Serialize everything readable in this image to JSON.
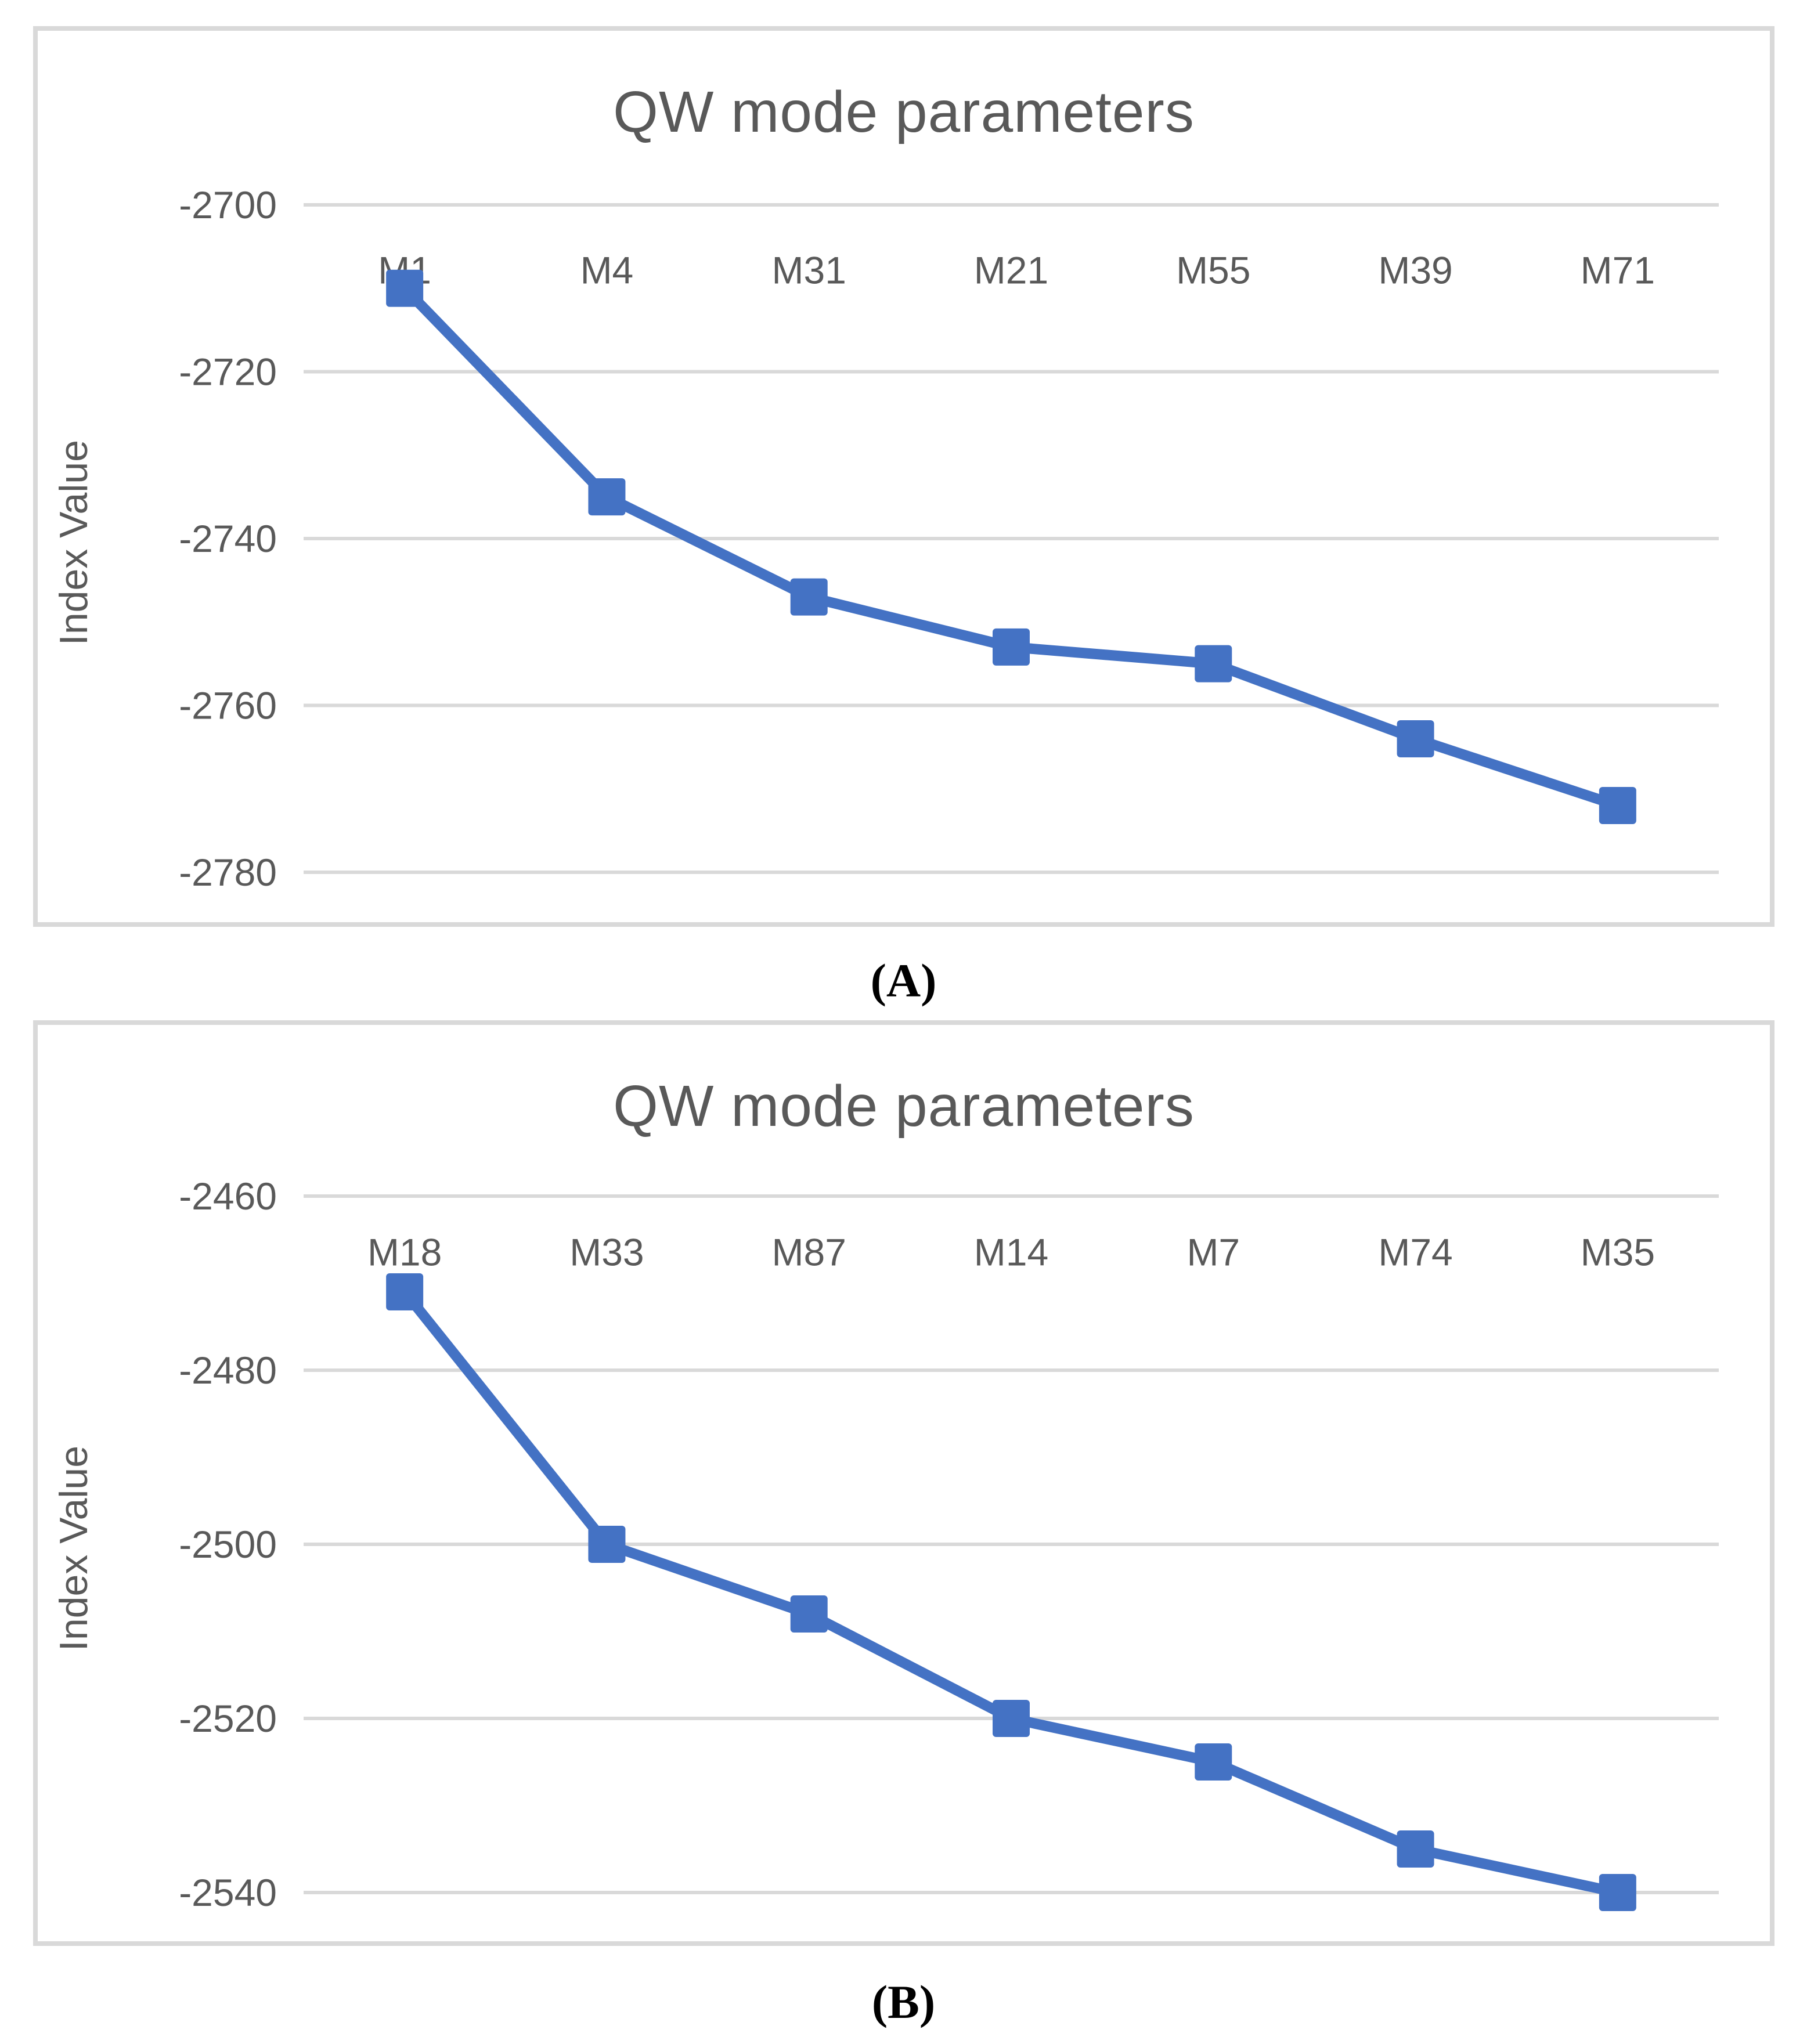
{
  "page": {
    "background": "#FFFFFF"
  },
  "chart_data": [
    {
      "type": "line",
      "title": "QW mode parameters",
      "caption": "(A)",
      "xlabel": "",
      "ylabel": "Index Value",
      "categories": [
        "M1",
        "M4",
        "M31",
        "M21",
        "M55",
        "M39",
        "M71"
      ],
      "series": [
        {
          "name": "QW mode parameters",
          "values": [
            -2710,
            -2735,
            -2747,
            -2753,
            -2755,
            -2764,
            -2772
          ]
        }
      ],
      "ylim": [
        -2780,
        -2700
      ],
      "yticks": [
        -2700,
        -2720,
        -2740,
        -2760,
        -2780
      ],
      "grid": true,
      "legend": false,
      "marker": "square",
      "line_color": "#4472C4",
      "gridline_color": "#D9D9D9",
      "border_color": "#D9D9D9",
      "text_color": "#595959",
      "caption_color": "#000000"
    },
    {
      "type": "line",
      "title": "QW mode parameters",
      "caption": "(B)",
      "xlabel": "",
      "ylabel": "Index Value",
      "categories": [
        "M18",
        "M33",
        "M87",
        "M14",
        "M7",
        "M74",
        "M35"
      ],
      "series": [
        {
          "name": "QW mode parameters",
          "values": [
            -2471,
            -2500,
            -2508,
            -2520,
            -2525,
            -2535,
            -2540
          ]
        }
      ],
      "ylim": [
        -2540,
        -2460
      ],
      "yticks": [
        -2460,
        -2480,
        -2500,
        -2520,
        -2540
      ],
      "grid": true,
      "legend": false,
      "marker": "square",
      "line_color": "#4472C4",
      "gridline_color": "#D9D9D9",
      "border_color": "#D9D9D9",
      "text_color": "#595959",
      "caption_color": "#000000"
    }
  ]
}
